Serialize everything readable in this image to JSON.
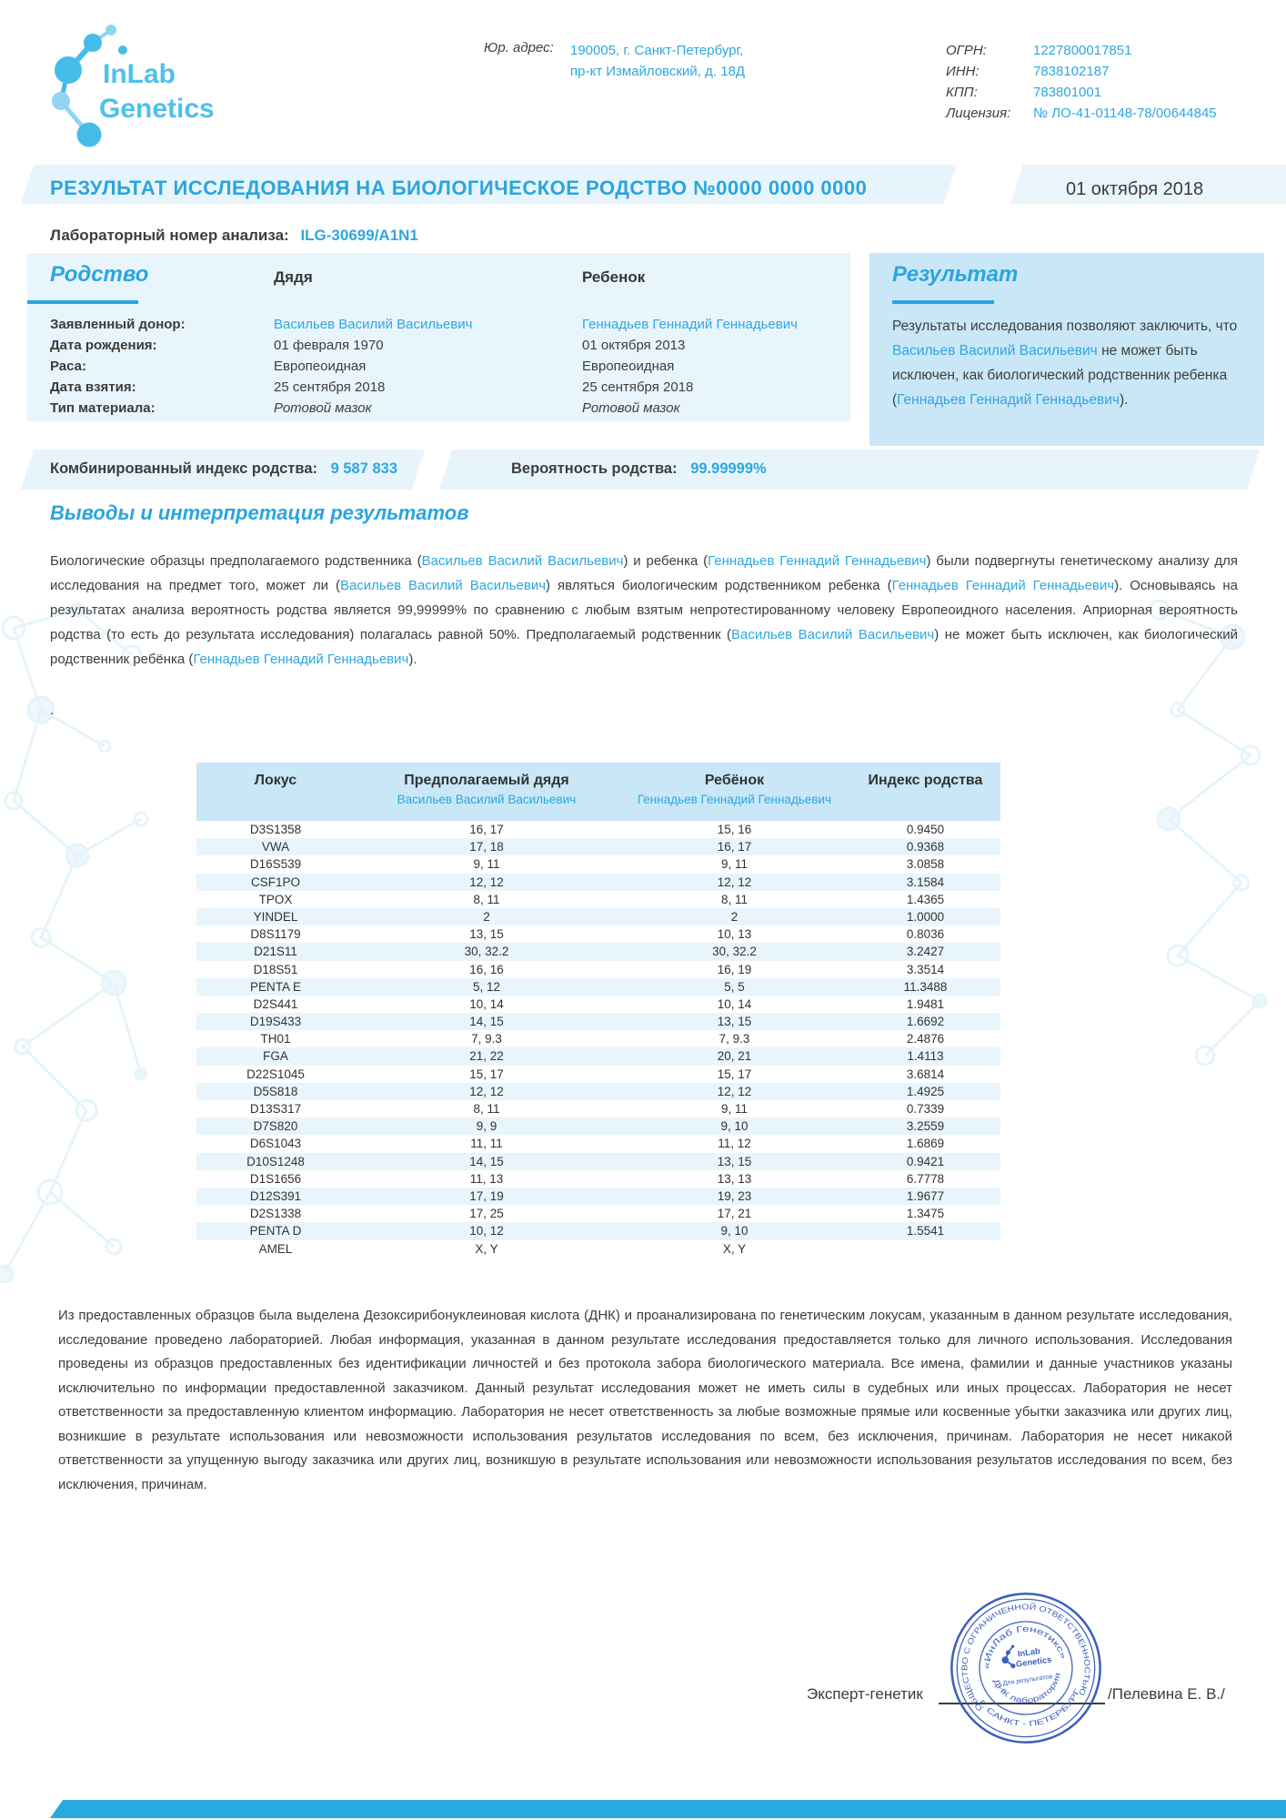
{
  "brand": {
    "name_line1": "InLab",
    "name_line2": "Genetics"
  },
  "header": {
    "address_label": "Юр. адрес:",
    "address_line1": "190005, г. Санкт-Петербург,",
    "address_line2": "пр-кт Измайловский, д. 18Д",
    "registry": [
      {
        "label": "ОГРН:",
        "value": "1227800017851"
      },
      {
        "label": "ИНН:",
        "value": "7838102187"
      },
      {
        "label": "КПП:",
        "value": "783801001"
      },
      {
        "label": "Лицензия:",
        "value": "№ ЛО-41-01148-78/00644845"
      }
    ]
  },
  "title": {
    "text": "РЕЗУЛЬТАТ ИССЛЕДОВАНИЯ НА БИОЛОГИЧЕСКОЕ  РОДСТВО №0000 0000 0000",
    "date": "01 октября 2018"
  },
  "lab_number": {
    "label": "Лабораторный номер анализа:",
    "value": "ILG-30699/A1N1"
  },
  "kinship": {
    "section_title": "Родство",
    "col1_header": "Дядя",
    "col2_header": "Ребенок",
    "rows": [
      {
        "label": "Заявленный донор:",
        "col1": "Васильев Василий Васильевич",
        "col2": "Геннадьев Геннадий Геннадьевич",
        "highlight": true
      },
      {
        "label": "Дата рождения:",
        "col1": "01 февраля 1970",
        "col2": "01 октября 2013"
      },
      {
        "label": "Раса:",
        "col1": "Европеоидная",
        "col2": "Европеоидная"
      },
      {
        "label": "Дата взятия:",
        "col1": "25 сентября 2018",
        "col2": "25 сентября 2018"
      },
      {
        "label": "Тип материала:",
        "col1": "Ротовой мазок",
        "col2": "Ротовой мазок",
        "italic": true
      }
    ]
  },
  "result_box": {
    "title": "Результат",
    "segments": [
      {
        "t": "Результаты исследования позволяют заключить, что "
      },
      {
        "t": "Васильев Василий Васильевич",
        "b": 1
      },
      {
        "t": " не может быть исключен, как биологический родственник ребенка ("
      },
      {
        "t": "Геннадьев Геннадий Геннадьевич",
        "b": 1
      },
      {
        "t": ")."
      }
    ]
  },
  "summary": {
    "index_label": "Комбинированный индекс родства:",
    "index_value": "9 587 833",
    "probability_label": "Вероятность родства:",
    "probability_value": "99.99999%"
  },
  "conclusions": {
    "title": "Выводы и интерпретация результатов",
    "segments": [
      {
        "t": "Биологические образцы предполагаемого родственника ("
      },
      {
        "t": "Васильев Василий Васильевич",
        "b": 1
      },
      {
        "t": ") и ребенка ("
      },
      {
        "t": "Геннадьев Геннадий Геннадьевич",
        "b": 1
      },
      {
        "t": ") были подвергнуты генетическому анализу для исследования на предмет того, может ли ("
      },
      {
        "t": "Васильев Василий Васильевич",
        "b": 1
      },
      {
        "t": ") являться биологическим родственником ребенка ("
      },
      {
        "t": "Геннадьев Геннадий Геннадьевич",
        "b": 1
      },
      {
        "t": "). Основываясь на результатах анализа вероятность родства является 99,99999% по сравнению с любым взятым непротестированному человеку Европеоидного населения. Априорная вероятность родства (то есть до результата исследования) полагалась равной 50%. Предполагаемый родственник ("
      },
      {
        "t": "Васильев Василий Васильевич",
        "b": 1
      },
      {
        "t": ") не может быть исключен, как биологический родственник ребёнка ("
      },
      {
        "t": "Геннадьев Геннадий Геннадьевич",
        "b": 1
      },
      {
        "t": ")."
      }
    ],
    "trailing_dot": "."
  },
  "loci_table": {
    "headers": {
      "locus": "Локус",
      "uncle": "Предполагаемый дядя",
      "uncle_sub": "Васильев Василий Васильевич",
      "child": "Ребёнок",
      "child_sub": "Геннадьев Геннадий Геннадьевич",
      "index": "Индекс родства"
    },
    "rows": [
      [
        "D3S1358",
        "16, 17",
        "15, 16",
        "0.9450"
      ],
      [
        "VWA",
        "17, 18",
        "16, 17",
        "0.9368"
      ],
      [
        "D16S539",
        "9, 11",
        "9, 11",
        "3.0858"
      ],
      [
        "CSF1PO",
        "12, 12",
        "12, 12",
        "3.1584"
      ],
      [
        "TPOX",
        "8, 11",
        "8, 11",
        "1.4365"
      ],
      [
        "YINDEL",
        "2",
        "2",
        "1.0000"
      ],
      [
        "D8S1179",
        "13, 15",
        "10, 13",
        "0.8036"
      ],
      [
        "D21S11",
        "30, 32.2",
        "30, 32.2",
        "3.2427"
      ],
      [
        "D18S51",
        "16, 16",
        "16, 19",
        "3.3514"
      ],
      [
        "PENTA E",
        "5, 12",
        "5, 5",
        "11.3488"
      ],
      [
        "D2S441",
        "10, 14",
        "10, 14",
        "1.9481"
      ],
      [
        "D19S433",
        "14, 15",
        "13, 15",
        "1.6692"
      ],
      [
        "TH01",
        "7, 9.3",
        "7, 9.3",
        "2.4876"
      ],
      [
        "FGA",
        "21, 22",
        "20, 21",
        "1.4113"
      ],
      [
        "D22S1045",
        "15, 17",
        "15, 17",
        "3.6814"
      ],
      [
        "D5S818",
        "12, 12",
        "12, 12",
        "1.4925"
      ],
      [
        "D13S317",
        "8, 11",
        "9, 11",
        "0.7339"
      ],
      [
        "D7S820",
        "9, 9",
        "9, 10",
        "3.2559"
      ],
      [
        "D6S1043",
        "11, 11",
        "11, 12",
        "1.6869"
      ],
      [
        "D10S1248",
        "14, 15",
        "13, 15",
        "0.9421"
      ],
      [
        "D1S1656",
        "11, 13",
        "13, 13",
        "6.7778"
      ],
      [
        "D12S391",
        "17, 19",
        "19, 23",
        "1.9677"
      ],
      [
        "D2S1338",
        "17, 25",
        "17, 21",
        "1.3475"
      ],
      [
        "PENTA D",
        "10, 12",
        "9, 10",
        "1.5541"
      ],
      [
        "AMEL",
        "X, Y",
        "X, Y",
        ""
      ]
    ]
  },
  "disclaimer": "Из предоставленных образцов была выделена Дезоксирибонуклеиновая кислота (ДНК) и проанализирована по генетическим локусам, указанным в данном результате исследования, исследование проведено лабораторией. Любая информация, указанная в данном результате исследования предоставляется только для личного использования. Исследования проведены из образцов предоставленных без идентификации личностей и без протокола забора биологического материала.  Все имена, фамилии и данные участников указаны исключительно по информации предоставленной заказчиком. Данный результат исследования может не иметь силы в судебных или иных процессах. Лаборатория не несет ответственности за предоставленную клиентом информацию. Лаборатория не несет ответственность за любые возможные прямые или косвенные убытки заказчика или других лиц, возникшие в результате использования или невозможности использования результатов исследования по всем, без исключения, причинам.  Лаборатория не несет никакой ответственности за упущенную выгоду заказчика или других лиц, возникшую в результате использования или невозможности использования результатов исследования по всем, без исключения, причинам.",
  "signature": {
    "role": "Эксперт-генетик",
    "name": "/Пелевина Е. В./"
  },
  "stamp": {
    "outer_top": "ОБЩЕСТВО С ОГРАНИЧЕННОЙ ОТВЕТСТВЕННОСТЬЮ",
    "outer_bottom": "Г. САНКТ - ПЕТЕРБУРГ",
    "inner_top": "«ИнЛаб Генетикс»",
    "inner_bottom": "ДНК лаборатория",
    "center_line1": "InLab",
    "center_line2": "Genetics",
    "center_line3": "Для результатов"
  },
  "colors": {
    "accent_blue": "#2ea7df",
    "logo_blue": "#4fc0eb",
    "band_bg": "#e8f4fb",
    "result_bg": "#c9e7f7",
    "row_alt": "#e9f5fc",
    "stamp_blue": "#2c53b7",
    "bottom_bar": "#29a9e0",
    "dark_text": "#3e3e3e"
  }
}
